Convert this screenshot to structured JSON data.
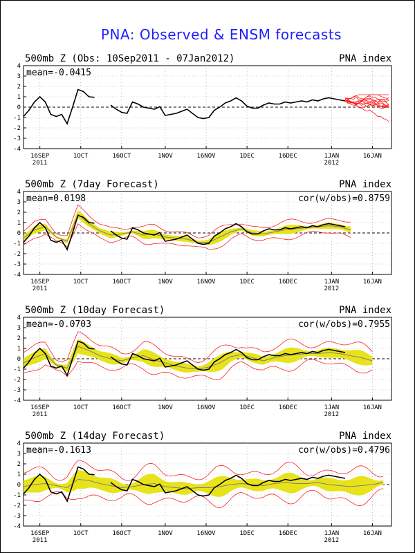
{
  "title": "PNA: Observed & ENSM forecasts",
  "colors": {
    "title": "#1f1fff",
    "observed": "#000000",
    "members": "#ff2020",
    "envelope": "#e8e21a",
    "mean": "#808080"
  },
  "x_ticks": [
    {
      "label": "16SEP",
      "sub": "2011",
      "day": 6
    },
    {
      "label": "1OCT",
      "sub": "",
      "day": 21
    },
    {
      "label": "16OCT",
      "sub": "",
      "day": 36
    },
    {
      "label": "1NOV",
      "sub": "",
      "day": 52
    },
    {
      "label": "16NOV",
      "sub": "",
      "day": 67
    },
    {
      "label": "1DEC",
      "sub": "",
      "day": 82
    },
    {
      "label": "16DEC",
      "sub": "",
      "day": 97
    },
    {
      "label": "1JAN",
      "sub": "2012",
      "day": 113
    },
    {
      "label": "16JAN",
      "sub": "",
      "day": 128
    }
  ],
  "y_ticks": [
    "4",
    "3",
    "2",
    "1",
    "0",
    "-1",
    "-2",
    "-3",
    "-4"
  ],
  "panels": [
    {
      "left": "500mb Z (Obs: 10Sep2011 - 07Jan2012)",
      "right": "PNA index",
      "mean": "mean=-0.0415",
      "cor": "",
      "kind": "obs"
    },
    {
      "left": "500mb Z (7day Forecast)",
      "right": "PNA index",
      "mean": "mean=0.0198",
      "cor": "cor(w/obs)=0.8759",
      "kind": "f7"
    },
    {
      "left": "500mb Z (10day Forecast)",
      "right": "PNA index",
      "mean": "mean=-0.0703",
      "cor": "cor(w/obs)=0.7955",
      "kind": "f10"
    },
    {
      "left": "500mb Z (14day Forecast)",
      "right": "PNA index",
      "mean": "mean=-0.1613",
      "cor": "cor(w/obs)=0.4796",
      "kind": "f14"
    }
  ],
  "chart_data": {
    "type": "line",
    "x_start": "2011-09-10",
    "xlim_days": [
      0,
      135
    ],
    "ylim": [
      -4,
      4
    ],
    "grid": true,
    "observed": {
      "x": [
        0,
        2,
        4,
        6,
        8,
        10,
        12,
        14,
        16,
        18,
        20,
        22,
        24,
        26,
        28,
        30,
        32,
        32,
        34,
        36,
        38,
        40,
        42,
        44,
        46,
        48,
        50,
        52,
        54,
        56,
        58,
        60,
        62,
        64,
        66,
        68,
        70,
        72,
        74,
        76,
        78,
        80,
        82,
        84,
        86,
        88,
        90,
        92,
        94,
        96,
        98,
        100,
        102,
        104,
        106,
        108,
        110,
        112,
        114,
        116,
        118
      ],
      "y": [
        -0.9,
        -0.3,
        0.5,
        1.0,
        0.5,
        -0.7,
        -0.9,
        -0.7,
        -1.6,
        0.0,
        1.7,
        1.5,
        1.0,
        0.95,
        null,
        null,
        null,
        0.2,
        -0.2,
        -0.5,
        -0.6,
        0.5,
        0.3,
        0.0,
        -0.1,
        -0.2,
        0.05,
        -0.8,
        -0.7,
        -0.6,
        -0.4,
        -0.2,
        -0.6,
        -1.0,
        -1.1,
        -1.0,
        -0.3,
        0.0,
        0.4,
        0.6,
        0.9,
        0.6,
        0.1,
        -0.1,
        -0.1,
        0.2,
        0.4,
        0.3,
        0.3,
        0.5,
        0.4,
        0.5,
        0.6,
        0.5,
        0.7,
        0.6,
        0.8,
        0.9,
        0.8,
        0.7,
        0.6
      ]
    },
    "forecast_7day_mean": {
      "x": [
        0,
        4,
        8,
        12,
        16,
        20,
        24,
        28,
        32,
        36,
        40,
        44,
        48,
        52,
        56,
        60,
        64,
        68,
        72,
        76,
        80,
        84,
        88,
        92,
        96,
        100,
        104,
        108,
        112,
        116,
        120
      ],
      "y": [
        -0.5,
        0.3,
        0.6,
        -0.4,
        -0.8,
        1.8,
        0.9,
        0.2,
        -0.2,
        -0.1,
        0.1,
        -0.2,
        -0.1,
        -0.4,
        -0.5,
        -0.6,
        -0.9,
        -0.9,
        -0.4,
        0.1,
        0.4,
        0.0,
        -0.1,
        0.1,
        0.3,
        0.4,
        0.5,
        0.6,
        0.7,
        0.6,
        0.3
      ]
    },
    "forecast_10day_mean": {
      "x": [
        0,
        4,
        8,
        12,
        16,
        20,
        24,
        28,
        32,
        36,
        40,
        44,
        48,
        52,
        56,
        60,
        64,
        68,
        72,
        76,
        80,
        84,
        88,
        92,
        96,
        100,
        104,
        108,
        112,
        116,
        120,
        124,
        128
      ],
      "y": [
        -0.4,
        0.1,
        0.5,
        -0.6,
        -0.9,
        1.2,
        0.8,
        0.3,
        0.0,
        -0.2,
        0.1,
        0.3,
        -0.1,
        -0.4,
        -0.7,
        -0.9,
        -1.0,
        -0.8,
        -0.4,
        0.2,
        0.4,
        0.1,
        -0.2,
        0.1,
        0.3,
        0.4,
        0.5,
        0.5,
        0.6,
        0.5,
        0.3,
        0.1,
        -0.2
      ]
    },
    "forecast_14day_mean": {
      "x": [
        0,
        4,
        8,
        12,
        16,
        20,
        24,
        28,
        32,
        36,
        40,
        44,
        48,
        52,
        56,
        60,
        64,
        68,
        72,
        76,
        80,
        84,
        88,
        92,
        96,
        100,
        104,
        108,
        112,
        116,
        120,
        124,
        128,
        132
      ],
      "y": [
        -0.2,
        0.0,
        0.1,
        -0.1,
        -0.3,
        0.5,
        0.4,
        0.1,
        -0.1,
        -0.3,
        -0.2,
        0.0,
        0.1,
        -0.2,
        -0.3,
        -0.4,
        -0.3,
        -0.3,
        -0.2,
        0.0,
        0.1,
        0.0,
        -0.1,
        0.1,
        0.2,
        0.1,
        0.1,
        0.2,
        0.0,
        -0.1,
        -0.2,
        -0.1,
        0.0,
        0.2
      ]
    },
    "spread": {
      "f7": 0.45,
      "f10": 0.75,
      "f14": 1.0
    }
  }
}
